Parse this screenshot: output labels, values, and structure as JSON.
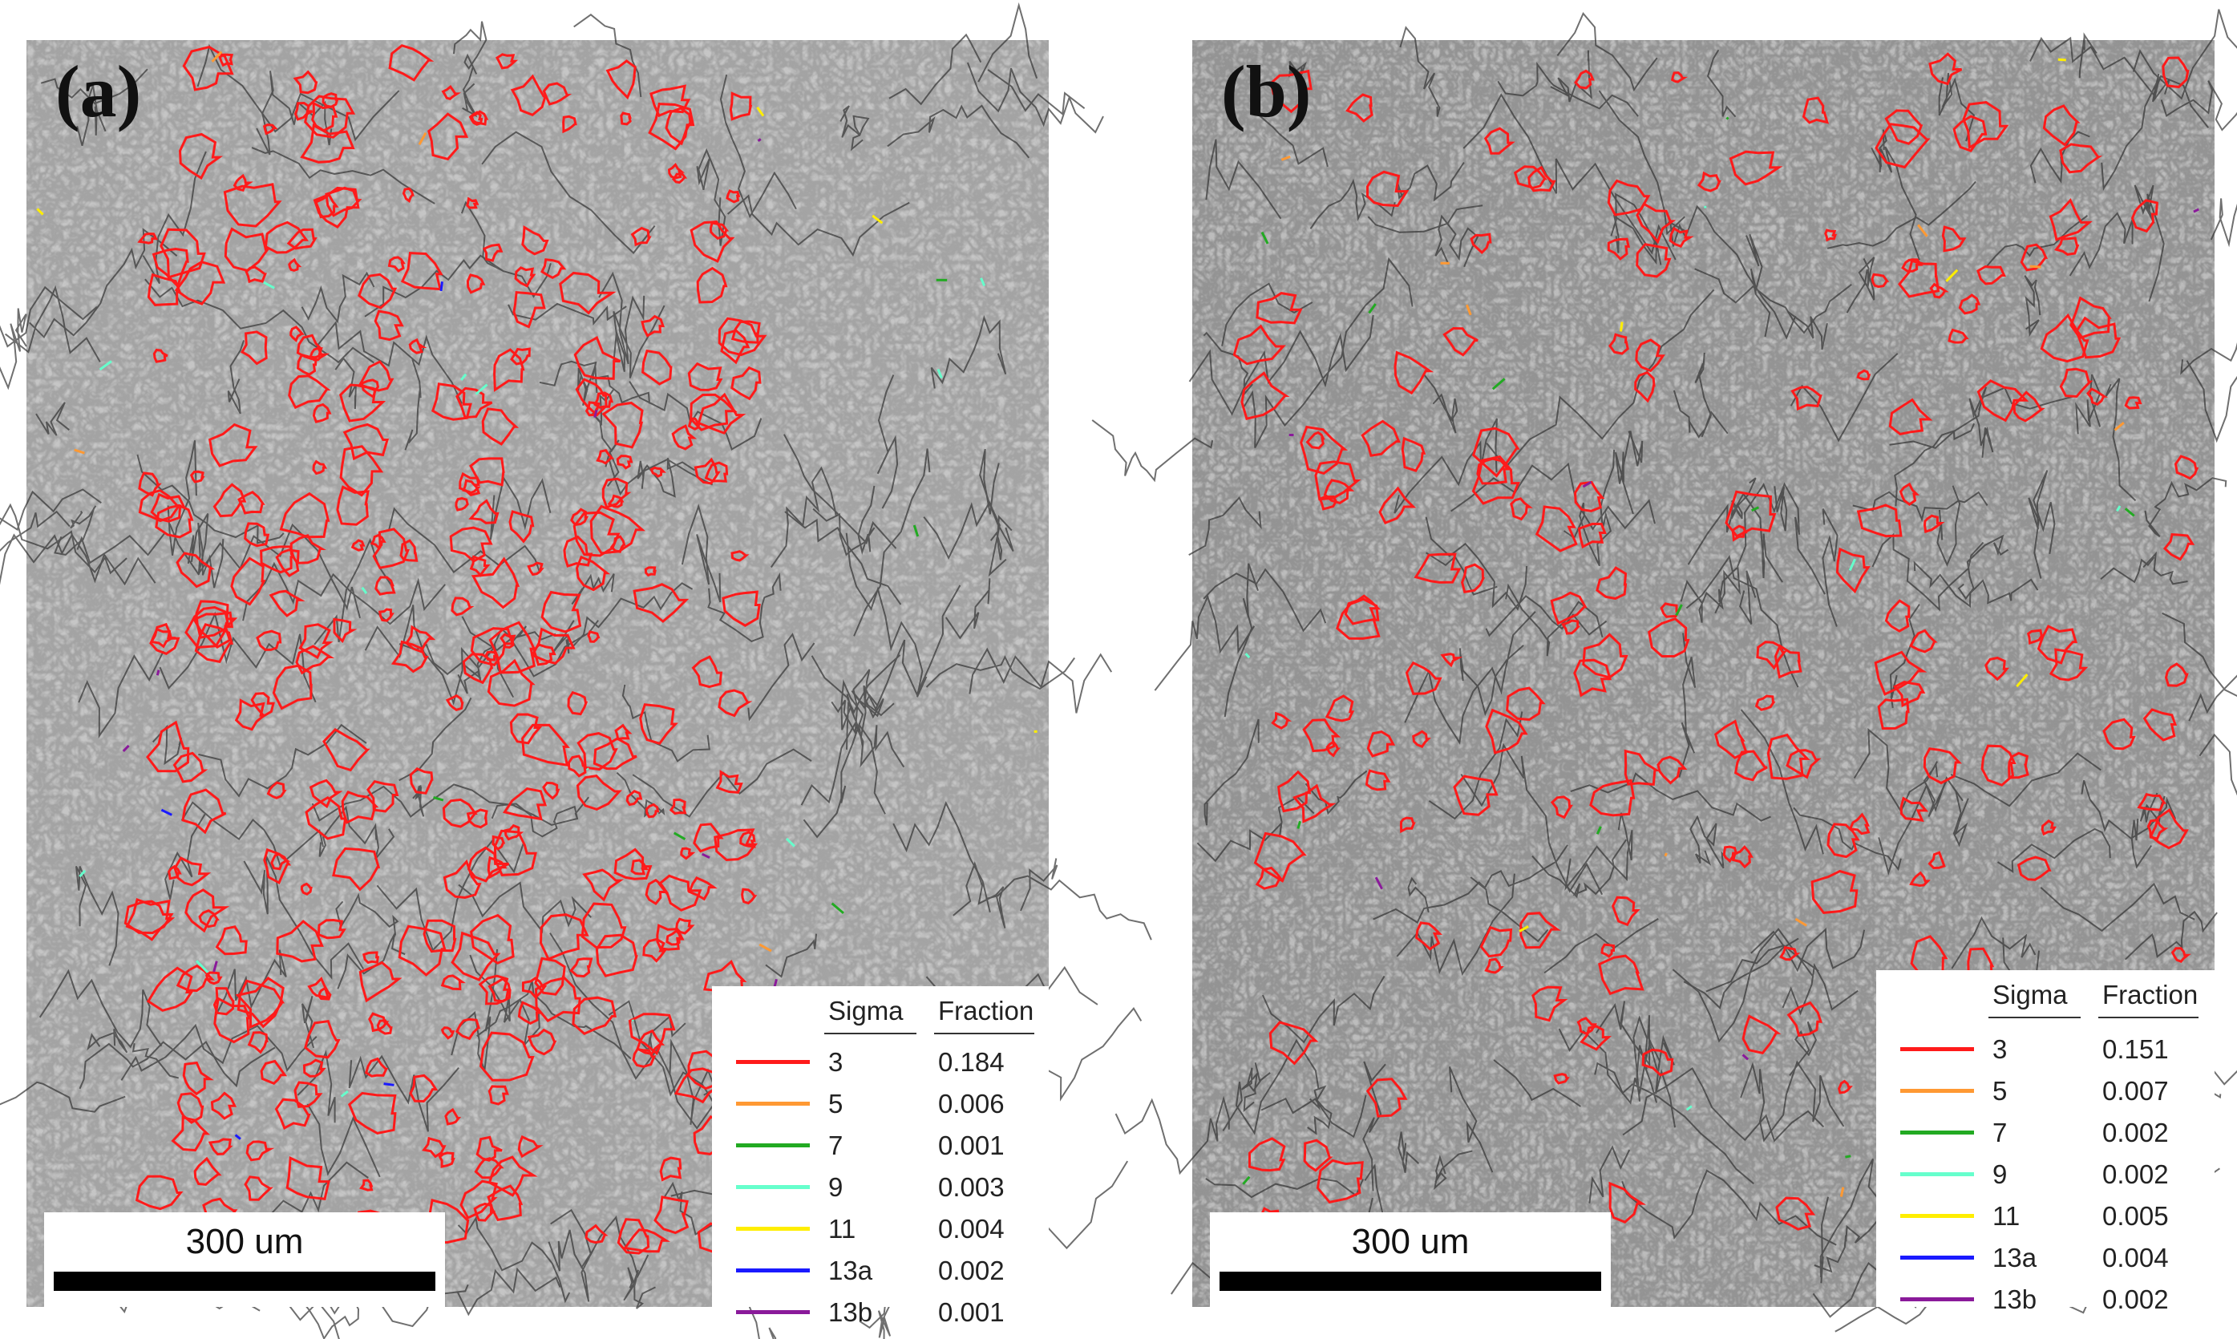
{
  "panels": [
    {
      "label": "(a)",
      "scale_bar": "300 um",
      "legend": {
        "header_sigma": "Sigma",
        "header_fraction": "Fraction",
        "rows": [
          {
            "sigma": "3",
            "fraction": "0.184",
            "color": "#ff1a1a"
          },
          {
            "sigma": "5",
            "fraction": "0.006",
            "color": "#ff9933"
          },
          {
            "sigma": "7",
            "fraction": "0.001",
            "color": "#22aa22"
          },
          {
            "sigma": "9",
            "fraction": "0.003",
            "color": "#66ffcc"
          },
          {
            "sigma": "11",
            "fraction": "0.004",
            "color": "#ffee00"
          },
          {
            "sigma": "13a",
            "fraction": "0.002",
            "color": "#1a1aff"
          },
          {
            "sigma": "13b",
            "fraction": "0.001",
            "color": "#8a1a9a"
          }
        ]
      }
    },
    {
      "label": "(b)",
      "scale_bar": "300 um",
      "legend": {
        "header_sigma": "Sigma",
        "header_fraction": "Fraction",
        "rows": [
          {
            "sigma": "3",
            "fraction": "0.151",
            "color": "#ff1a1a"
          },
          {
            "sigma": "5",
            "fraction": "0.007",
            "color": "#ff9933"
          },
          {
            "sigma": "7",
            "fraction": "0.002",
            "color": "#22aa22"
          },
          {
            "sigma": "9",
            "fraction": "0.002",
            "color": "#66ffcc"
          },
          {
            "sigma": "11",
            "fraction": "0.005",
            "color": "#ffee00"
          },
          {
            "sigma": "13a",
            "fraction": "0.004",
            "color": "#1a1aff"
          },
          {
            "sigma": "13b",
            "fraction": "0.002",
            "color": "#8a1a9a"
          }
        ]
      }
    }
  ]
}
